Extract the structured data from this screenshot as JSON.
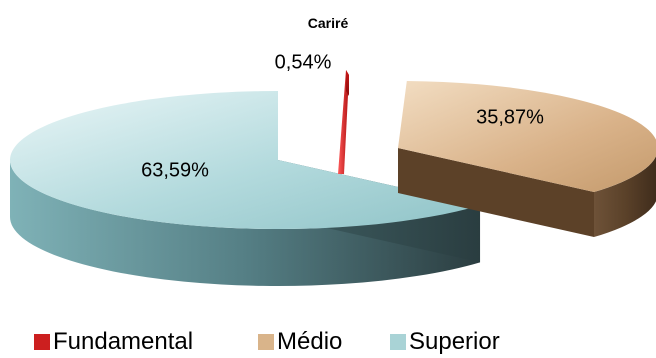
{
  "chart_data": {
    "type": "pie",
    "title": "Cariré",
    "categories": [
      "Fundamental",
      "Médio",
      "Superior"
    ],
    "values": [
      0.54,
      35.87,
      63.59
    ],
    "data_labels": [
      "0,54%",
      "35,87%",
      "63,59%"
    ],
    "colors": [
      "#cc1f1f",
      "#d9b48a",
      "#a9d3d6"
    ],
    "legend_position": "bottom",
    "style": "3d-exploded"
  }
}
